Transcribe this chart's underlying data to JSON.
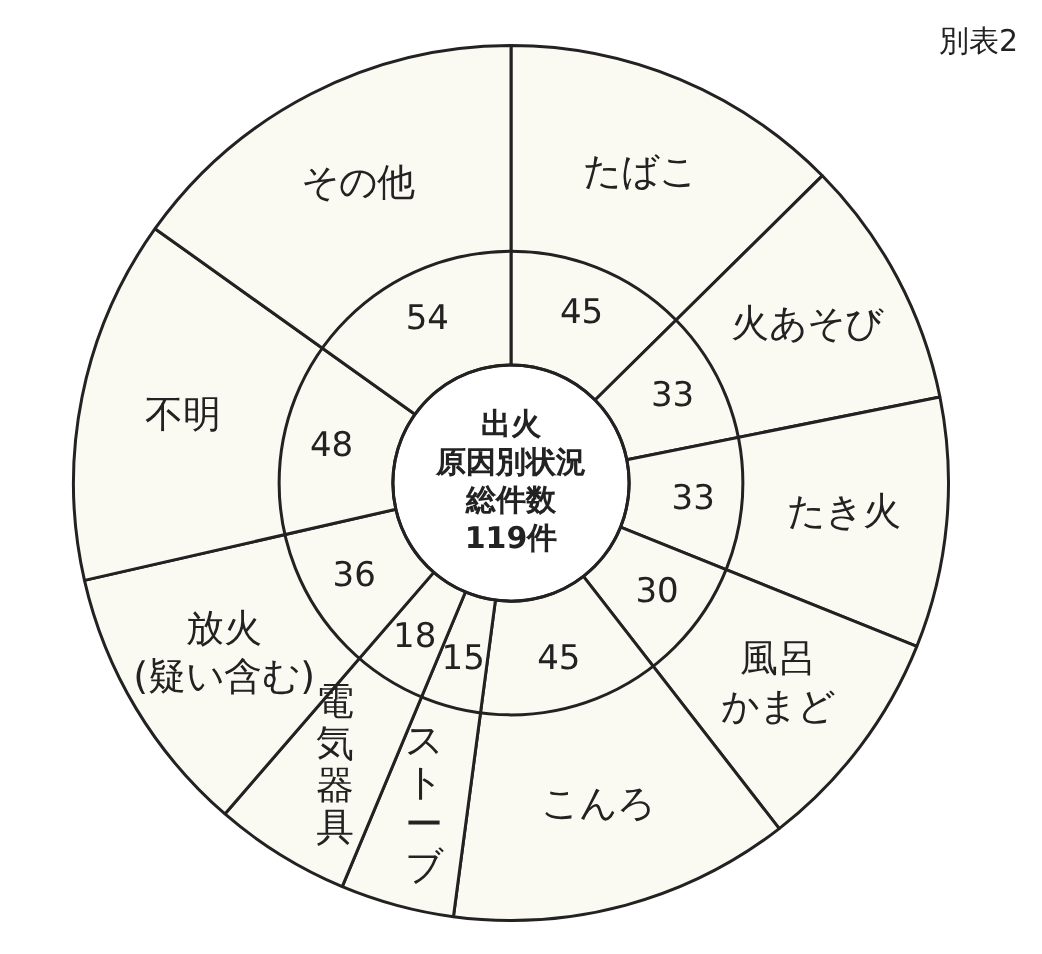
{
  "chart_data": {
    "type": "donut",
    "title": "別表2",
    "annotations": [
      "出火",
      "原因別状況",
      "総件数",
      "119件"
    ],
    "categories": [
      "たばこ",
      "火あそび",
      "たき火",
      "風呂かまど",
      "こんろ",
      "ストーブ",
      "電気器具",
      "放火(疑い含む)",
      "不明",
      "その他"
    ],
    "values": [
      45,
      33,
      33,
      30,
      45,
      15,
      18,
      36,
      48,
      54
    ],
    "colors": [
      "#fbfaf2",
      "#fbfaf2",
      "#fbfaf2",
      "#fbfaf2",
      "#fbfaf2",
      "#fbfaf2",
      "#fbfaf2",
      "#fbfaf2",
      "#fbfaf2",
      "#fbfaf2"
    ],
    "data_labels": true,
    "legend": false
  }
}
